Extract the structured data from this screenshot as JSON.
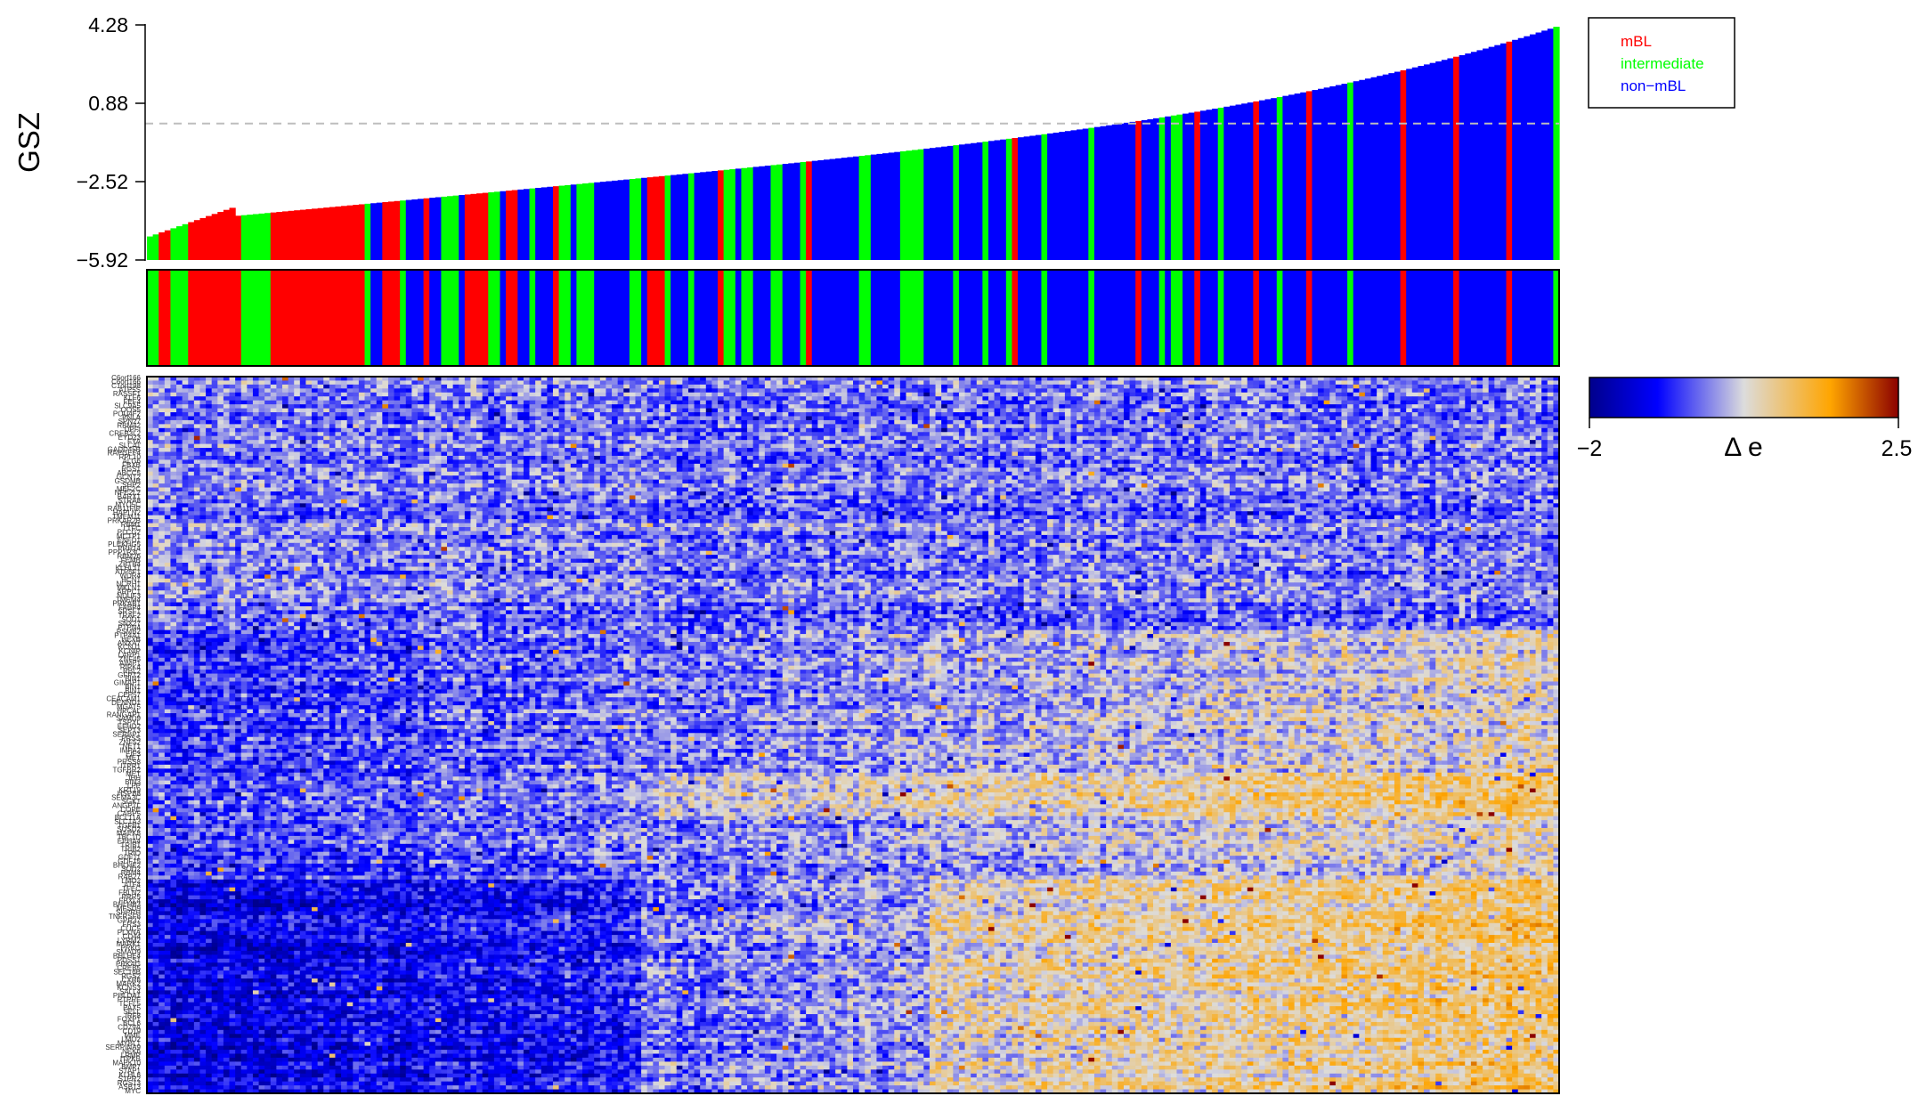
{
  "chart_data": [
    {
      "type": "bar",
      "ylabel": "GSZ",
      "yticks": [
        "4.28",
        "0.88",
        "−2.52",
        "−5.92"
      ],
      "ytick_values": [
        4.28,
        0.88,
        -2.52,
        -5.92
      ],
      "ylim": [
        -5.92,
        4.28
      ],
      "baseline": -5.92,
      "threshold": 0,
      "threshold_style": "dashed grey",
      "n_samples": 240,
      "range": [
        -4.9,
        4.2
      ],
      "series": [
        {
          "name": "mBL",
          "color": "#ff0000"
        },
        {
          "name": "intermediate",
          "color": "#00ff00"
        },
        {
          "name": "non−mBL",
          "color": "#0000ff"
        }
      ],
      "group_runs": [
        [
          0,
          2,
          1
        ],
        [
          2,
          2,
          0
        ],
        [
          4,
          3,
          1
        ],
        [
          7,
          9,
          0
        ],
        [
          16,
          5,
          1
        ],
        [
          21,
          16,
          0
        ],
        [
          37,
          1,
          1
        ],
        [
          38,
          2,
          2
        ],
        [
          40,
          3,
          0
        ],
        [
          43,
          1,
          1
        ],
        [
          44,
          3,
          2
        ],
        [
          47,
          1,
          0
        ],
        [
          48,
          2,
          2
        ],
        [
          50,
          3,
          1
        ],
        [
          53,
          1,
          2
        ],
        [
          54,
          4,
          0
        ],
        [
          58,
          2,
          1
        ],
        [
          60,
          1,
          2
        ],
        [
          61,
          2,
          0
        ],
        [
          63,
          2,
          2
        ],
        [
          65,
          1,
          1
        ],
        [
          66,
          3,
          2
        ],
        [
          69,
          1,
          0
        ],
        [
          70,
          2,
          1
        ],
        [
          72,
          1,
          2
        ],
        [
          73,
          3,
          1
        ],
        [
          76,
          2,
          2
        ],
        [
          78,
          4,
          2
        ],
        [
          82,
          2,
          1
        ],
        [
          84,
          1,
          2
        ],
        [
          85,
          3,
          0
        ],
        [
          88,
          1,
          1
        ],
        [
          89,
          3,
          2
        ],
        [
          92,
          1,
          1
        ],
        [
          93,
          4,
          2
        ],
        [
          97,
          1,
          0
        ],
        [
          98,
          2,
          1
        ],
        [
          100,
          1,
          2
        ],
        [
          101,
          2,
          1
        ],
        [
          103,
          3,
          2
        ],
        [
          106,
          2,
          1
        ],
        [
          108,
          3,
          2
        ],
        [
          111,
          1,
          1
        ],
        [
          112,
          1,
          0
        ],
        [
          113,
          3,
          2
        ],
        [
          116,
          5,
          2
        ],
        [
          121,
          2,
          1
        ],
        [
          123,
          2,
          2
        ],
        [
          125,
          3,
          2
        ],
        [
          128,
          2,
          1
        ],
        [
          130,
          2,
          1
        ],
        [
          132,
          5,
          2
        ],
        [
          137,
          1,
          1
        ],
        [
          138,
          4,
          2
        ],
        [
          142,
          1,
          1
        ],
        [
          143,
          3,
          2
        ],
        [
          146,
          1,
          1
        ],
        [
          147,
          1,
          0
        ],
        [
          148,
          4,
          2
        ],
        [
          152,
          1,
          1
        ],
        [
          153,
          2,
          2
        ],
        [
          155,
          5,
          2
        ],
        [
          160,
          1,
          1
        ],
        [
          161,
          3,
          2
        ],
        [
          164,
          4,
          2
        ],
        [
          168,
          1,
          0
        ],
        [
          169,
          3,
          2
        ],
        [
          172,
          1,
          1
        ],
        [
          173,
          1,
          2
        ],
        [
          174,
          2,
          1
        ],
        [
          176,
          2,
          2
        ],
        [
          178,
          1,
          0
        ],
        [
          179,
          3,
          2
        ],
        [
          182,
          1,
          1
        ],
        [
          183,
          5,
          2
        ],
        [
          188,
          1,
          0
        ],
        [
          189,
          3,
          2
        ],
        [
          192,
          1,
          1
        ],
        [
          193,
          4,
          2
        ],
        [
          197,
          1,
          0
        ],
        [
          198,
          6,
          2
        ],
        [
          204,
          1,
          1
        ],
        [
          205,
          8,
          2
        ],
        [
          213,
          1,
          0
        ],
        [
          214,
          8,
          2
        ],
        [
          222,
          1,
          0
        ],
        [
          223,
          8,
          2
        ],
        [
          231,
          1,
          0
        ],
        [
          232,
          7,
          2
        ],
        [
          239,
          1,
          1
        ]
      ]
    },
    {
      "type": "heatmap",
      "rows": 181,
      "columns": 240,
      "row_labels": [
        "C6orf166",
        "C6orf166",
        "C1orf198",
        "ATP5S",
        "RASSF1",
        "KLF6",
        "FEF4",
        "SLC9A5",
        "OOS5",
        "POU4F2",
        "PNLA",
        "SPN27",
        "RBM42",
        "DPFI",
        "CREB3L2",
        "EYD23",
        "FYA",
        "SLC41",
        "GADD45B",
        "RAPGEF4",
        "RPL10",
        "ALG6",
        "FBXB",
        "RGS1",
        "ABCC5",
        "GCNT2",
        "GSDMB",
        "SHP2",
        "MEF2C",
        "NFE2L2",
        "BARX1",
        "STRA8",
        "MYO5C",
        "RAB11FIP",
        "HAPLN2",
        "TMEM11",
        "PRKAR2B",
        "RBM1",
        "LTFC",
        "PLCG2",
        "MCTP1",
        "ENFD1",
        "PLEKHG5",
        "PRR14",
        "PPP1R3C",
        "RBM26",
        "FEMB",
        "ZBTB4",
        "KLHL11",
        "ATP5F1",
        "WDR4",
        "HCN1",
        "NCRH1",
        "MKLN1",
        "ARPC1",
        "NDUF3",
        "TMEM4",
        "PRKAB1",
        "FABP4",
        "SRSF1",
        "TRAF2",
        "SOD1",
        "SNX27",
        "PTPN4",
        "PSMB2",
        "PTP4A1",
        "HEXB",
        "ANXA7",
        "KCNJ1",
        "KCNIP",
        "LARP1",
        "ZNF45",
        "AIMP1",
        "RIPK4",
        "RBL2",
        "GFPT2",
        "BIN1",
        "GIMAP1",
        "BIN1",
        "BIN1",
        "CEP57",
        "CEACAM1",
        "DENND1",
        "MGAT5",
        "HPCAL",
        "RANGAP1",
        "SAMD9",
        "TSPYL",
        "EFHD2",
        "SEPT3",
        "SERBP1",
        "PRSS",
        "ZNF52",
        "NET1",
        "IMPA2",
        "EIF3",
        "MET",
        "PRSS8",
        "ITPR1",
        "TGFBR2",
        "MET",
        "IHH",
        "BIN3",
        "LPP",
        "KRT19",
        "HSPB8",
        "SEMA3C",
        "SGK1",
        "ANGPTL",
        "COPE",
        "CABP5",
        "BCL11A",
        "SLC1A3",
        "TGFB1",
        "SUSD2",
        "MAPK8",
        "TBC1D",
        "EPHA4",
        "TRIB1",
        "TRIB2",
        "TRIO",
        "GDF11",
        "GDF15",
        "BHLHE2",
        "SOD2",
        "RBM4",
        "RAB27",
        "LMO2",
        "ATF4",
        "TFEC",
        "FBLN2",
        "PRR5",
        "FBXL4",
        "BHLHB3",
        "MFSD9",
        "SHPRH",
        "TNFRSF8",
        "GPR37",
        "FRS3",
        "CLIC5",
        "PLXNA",
        "CD44",
        "LYRM2",
        "MARK1",
        "PRKG",
        "SMAD9",
        "BHLHE4",
        "PDSS1",
        "PRKAG",
        "CREB5",
        "SEC16B",
        "RGS2",
        "CYR6",
        "MARK2",
        "KCNS3",
        "SALL4",
        "PHLDA1",
        "PTPRF",
        "TCFL5",
        "PAX5",
        "SELL",
        "IRF8",
        "FOXP1",
        "BCL6",
        "CD79A",
        "CD19",
        "MME",
        "LMO2",
        "MYBL1",
        "SERPINA9",
        "NEK6",
        "LRMP",
        "ITPKB",
        "MAPK10",
        "BMP7",
        "STAP1",
        "KLHL6",
        "S1PR2",
        "RGS13",
        "ASB13",
        "MYC"
      ],
      "colorbar": {
        "colors": [
          "#00008b",
          "#0000ff",
          "#dcdcdc",
          "#ffa500",
          "#8b0000"
        ],
        "min": -2,
        "max": 2.5,
        "min_label": "−2",
        "max_label": "2.5",
        "title": "Δ e"
      }
    }
  ]
}
